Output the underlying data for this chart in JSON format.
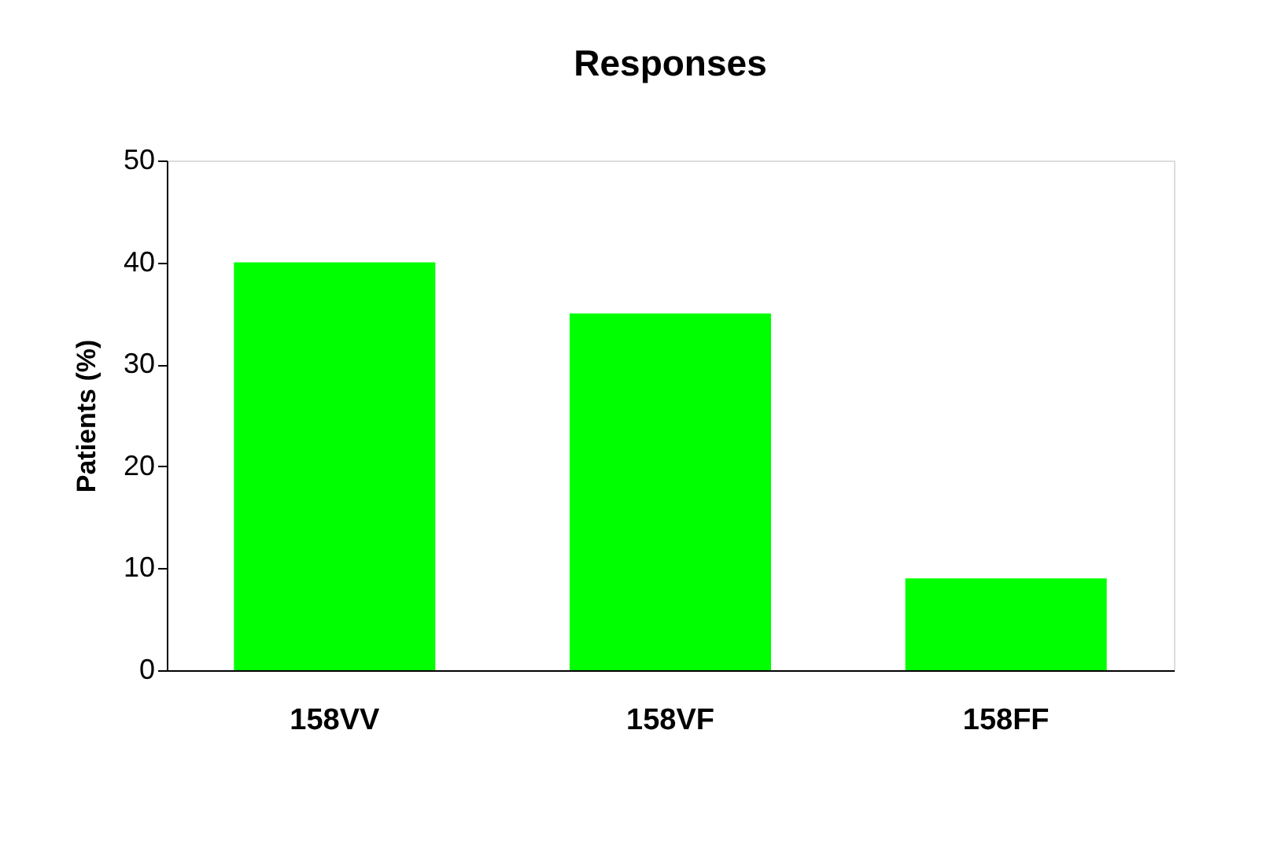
{
  "chart_data": {
    "type": "bar",
    "title": "Responses",
    "ylabel": "Patients (%)",
    "categories": [
      "158VV",
      "158VF",
      "158FF"
    ],
    "values": [
      40,
      35,
      9
    ],
    "color": "#00ff00",
    "ylim": [
      0,
      50
    ],
    "yticks": [
      0,
      10,
      20,
      30,
      40,
      50
    ],
    "grid": false
  }
}
